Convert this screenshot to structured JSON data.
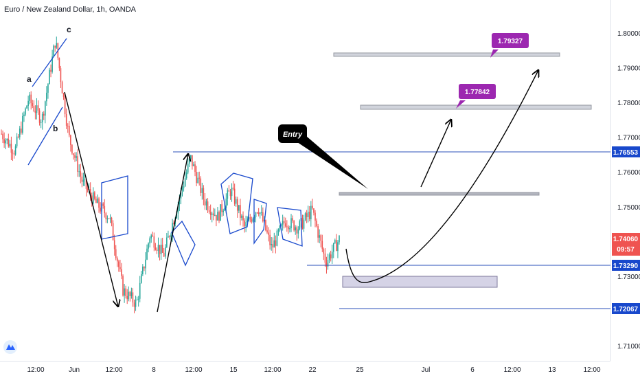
{
  "header": {
    "title": "Euro / New Zealand Dollar, 1h, OANDA"
  },
  "price_axis": {
    "ticks": [
      "1.80000",
      "1.79000",
      "1.78000",
      "1.77000",
      "1.76000",
      "1.75000",
      "1.73000",
      "1.71000"
    ],
    "tick_values": [
      1.8,
      1.79,
      1.78,
      1.77,
      1.76,
      1.75,
      1.73,
      1.71
    ]
  },
  "time_axis": {
    "ticks": [
      "12:00",
      "Jun",
      "12:00",
      "8",
      "12:00",
      "15",
      "12:00",
      "22",
      "25",
      "Jul",
      "6",
      "12:00",
      "13",
      "12:00"
    ]
  },
  "levels": {
    "resistance": {
      "price": 1.76553,
      "label": "1.76553"
    },
    "support_1": {
      "price": 1.7329,
      "label": "1.73290"
    },
    "support_2": {
      "price": 1.72067,
      "label": "1.72067"
    },
    "current": {
      "price": 1.7406,
      "label": "1.74060",
      "countdown": "09:57"
    }
  },
  "targets": [
    {
      "label": "1.79327",
      "price": 1.79327
    },
    {
      "label": "1.77842",
      "price": 1.77842
    }
  ],
  "annotations": {
    "entry": "Entry",
    "waves": [
      "a",
      "b",
      "c"
    ]
  },
  "colors": {
    "up": "#26a69a",
    "down": "#ef5350",
    "line": "#2962ff",
    "badge": "#9c27b0",
    "level_badge": "#1848cc",
    "current_badge": "#ef5350"
  },
  "chart_data": {
    "type": "candlestick",
    "title": "Euro / New Zealand Dollar, 1h, OANDA",
    "xlabel": "",
    "ylabel": "",
    "ylim": [
      1.704,
      1.808
    ],
    "horizontal_levels": [
      1.76553,
      1.7329,
      1.72067
    ],
    "last_price": 1.7406,
    "target_levels": [
      1.79327,
      1.77842
    ],
    "path_points": [
      {
        "x": "May 28",
        "y": 1.771
      },
      {
        "x": "May 29",
        "y": 1.766
      },
      {
        "x": "May 29 12:00",
        "y": 1.781
      },
      {
        "x": "May 30",
        "y": 1.775
      },
      {
        "x": "May 31",
        "y": 1.798
      },
      {
        "x": "Jun 1",
        "y": 1.77
      },
      {
        "x": "Jun 3",
        "y": 1.757
      },
      {
        "x": "Jun 4",
        "y": 1.751
      },
      {
        "x": "Jun 5",
        "y": 1.747
      },
      {
        "x": "Jun 7",
        "y": 1.726
      },
      {
        "x": "Jun 8",
        "y": 1.722
      },
      {
        "x": "Jun 9",
        "y": 1.742
      },
      {
        "x": "Jun 10",
        "y": 1.736
      },
      {
        "x": "Jun 11",
        "y": 1.75
      },
      {
        "x": "Jun 12",
        "y": 1.764
      },
      {
        "x": "Jun 13",
        "y": 1.752
      },
      {
        "x": "Jun 15",
        "y": 1.747
      },
      {
        "x": "Jun 16",
        "y": 1.755
      },
      {
        "x": "Jun 17",
        "y": 1.744
      },
      {
        "x": "Jun 18",
        "y": 1.75
      },
      {
        "x": "Jun 19",
        "y": 1.738
      },
      {
        "x": "Jun 20",
        "y": 1.746
      },
      {
        "x": "Jun 21",
        "y": 1.744
      },
      {
        "x": "Jun 22",
        "y": 1.749
      },
      {
        "x": "Jun 23",
        "y": 1.734
      },
      {
        "x": "Jun 23 12:00",
        "y": 1.7406
      }
    ]
  }
}
